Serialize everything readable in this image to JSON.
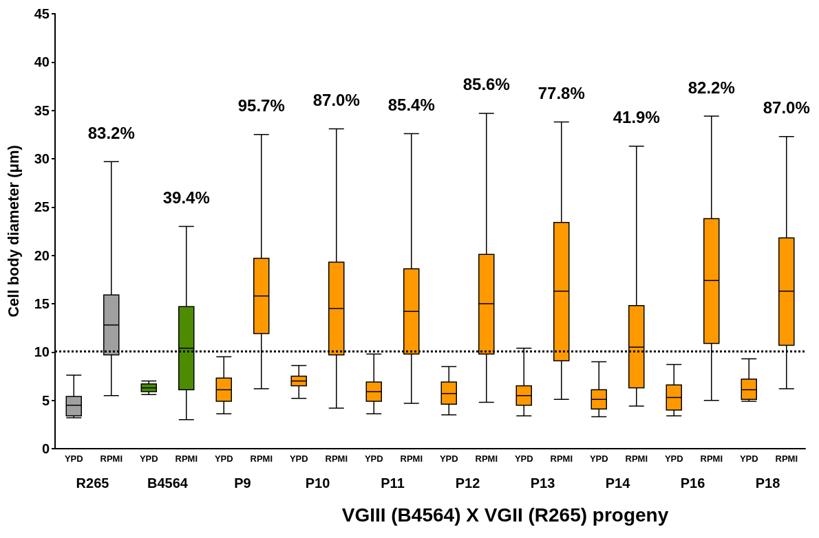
{
  "chart_data": {
    "type": "box",
    "ylabel": "Cell body diameter (μm)",
    "categories": [
      "YPD",
      "RPMI",
      "YPD",
      "RPMI",
      "YPD",
      "RPMI",
      "YPD",
      "RPMI",
      "YPD",
      "RPMI",
      "YPD",
      "RPMI",
      "YPD",
      "RPMI",
      "YPD",
      "RPMI",
      "YPD",
      "RPMI",
      "YPD",
      "RPMI"
    ],
    "colors": [
      "#a0a0a0",
      "#a0a0a0",
      "#4d8c00",
      "#4d8c00",
      "#ff9900",
      "#ff9900",
      "#ff9900",
      "#ff9900",
      "#ff9900",
      "#ff9900",
      "#ff9900",
      "#ff9900",
      "#ff9900",
      "#ff9900",
      "#ff9900",
      "#ff9900",
      "#ff9900",
      "#ff9900",
      "#ff9900",
      "#ff9900"
    ],
    "boxes": [
      {
        "low": 3.2,
        "q1": 3.4,
        "median": 4.5,
        "q3": 5.4,
        "high": 7.6
      },
      {
        "low": 5.5,
        "q1": 9.7,
        "median": 12.8,
        "q3": 15.9,
        "high": 29.7
      },
      {
        "low": 5.6,
        "q1": 5.9,
        "median": 6.3,
        "q3": 6.7,
        "high": 7.0
      },
      {
        "low": 3.0,
        "q1": 6.1,
        "median": 10.4,
        "q3": 14.7,
        "high": 23.0
      },
      {
        "low": 3.6,
        "q1": 4.9,
        "median": 6.1,
        "q3": 7.3,
        "high": 9.5
      },
      {
        "low": 6.2,
        "q1": 11.9,
        "median": 15.8,
        "q3": 19.7,
        "high": 32.5
      },
      {
        "low": 5.2,
        "q1": 6.5,
        "median": 7.0,
        "q3": 7.5,
        "high": 8.6
      },
      {
        "low": 4.2,
        "q1": 9.7,
        "median": 14.5,
        "q3": 19.3,
        "high": 33.1
      },
      {
        "low": 3.6,
        "q1": 4.9,
        "median": 5.9,
        "q3": 6.9,
        "high": 9.8
      },
      {
        "low": 4.7,
        "q1": 9.8,
        "median": 14.2,
        "q3": 18.6,
        "high": 32.6
      },
      {
        "low": 3.5,
        "q1": 4.6,
        "median": 5.7,
        "q3": 6.9,
        "high": 8.5
      },
      {
        "low": 4.8,
        "q1": 9.8,
        "median": 15.0,
        "q3": 20.1,
        "high": 34.7
      },
      {
        "low": 3.4,
        "q1": 4.5,
        "median": 5.5,
        "q3": 6.5,
        "high": 10.4
      },
      {
        "low": 5.1,
        "q1": 9.1,
        "median": 16.3,
        "q3": 23.4,
        "high": 33.8
      },
      {
        "low": 3.3,
        "q1": 4.1,
        "median": 5.1,
        "q3": 6.1,
        "high": 9.0
      },
      {
        "low": 4.4,
        "q1": 6.3,
        "median": 10.5,
        "q3": 14.8,
        "high": 31.3
      },
      {
        "low": 3.4,
        "q1": 4.0,
        "median": 5.3,
        "q3": 6.6,
        "high": 8.7
      },
      {
        "low": 5.0,
        "q1": 10.9,
        "median": 17.4,
        "q3": 23.8,
        "high": 34.4
      },
      {
        "low": 4.9,
        "q1": 5.1,
        "median": 6.1,
        "q3": 7.2,
        "high": 9.3
      },
      {
        "low": 6.2,
        "q1": 10.7,
        "median": 16.3,
        "q3": 21.8,
        "high": 32.3
      }
    ],
    "annotations": [
      "83.2%",
      "39.4%",
      "95.7%",
      "87.0%",
      "85.4%",
      "85.6%",
      "77.8%",
      "41.9%",
      "82.2%",
      "87.0%",
      "R265",
      "B4564",
      "P9",
      "P10",
      "P11",
      "P12",
      "P13",
      "P14",
      "P16",
      "P18",
      "VGIII (B4564) X VGII (R265) progeny"
    ],
    "ref_lines": [
      {
        "axis": "y",
        "value": 10.1,
        "color": "#000000",
        "line_style": "dotted"
      }
    ],
    "ylim": [
      0,
      45
    ],
    "yticks": [
      0,
      5,
      10,
      15,
      20,
      25,
      30,
      35,
      40,
      45
    ],
    "grid": false
  }
}
